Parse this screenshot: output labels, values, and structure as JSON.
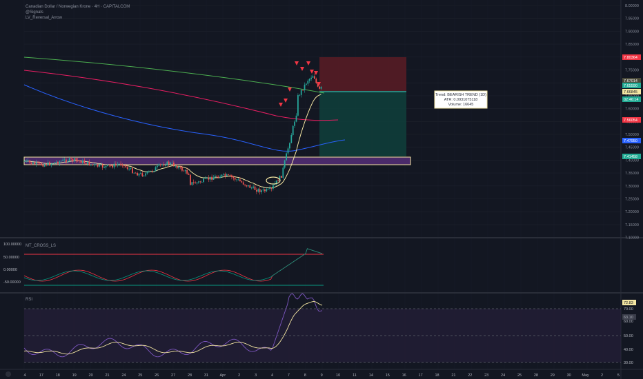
{
  "header": {
    "symbol_line": "Canadian Dollar / Norwegian Krone · 4H · CAPITALCOM",
    "line2": "@Signals",
    "line3": "LV_Reversal_Arrow"
  },
  "info_box": {
    "trend": "Trend: BEARISH TREND (1D)",
    "atr": "ATR: 0.0931075118",
    "volume": "Volume: 16645"
  },
  "price_axis": {
    "ticks": [
      "8.00000",
      "7.95000",
      "7.90000",
      "7.85000",
      "7.80000",
      "7.75000",
      "7.70000",
      "7.65000",
      "7.60000",
      "7.55000",
      "7.50000",
      "7.45000",
      "7.40000",
      "7.35000",
      "7.30000",
      "7.25000",
      "7.20000",
      "7.15000",
      "7.10000"
    ],
    "badges": [
      {
        "label": "7.80364",
        "color": "#f23645"
      },
      {
        "label": "7.67014",
        "color": "#4a4a3a"
      },
      {
        "label": "7.65590",
        "color": "#22ab94"
      },
      {
        "label": "7.66845",
        "color": "#f5e7a3"
      },
      {
        "label": "02:46:14",
        "color": "#22ab94"
      },
      {
        "label": "7.56054",
        "color": "#f23645"
      },
      {
        "label": "7.47950",
        "color": "#2962ff"
      },
      {
        "label": "7.41458",
        "color": "#22ab94"
      }
    ]
  },
  "osc_panel": {
    "title": "MT_CROSS_LS",
    "ticks": [
      "100.00000",
      "50.00000",
      "0.00000",
      "-50.00000"
    ]
  },
  "rsi_panel": {
    "title": "RSI",
    "ticks": [
      "72.83",
      "70.00",
      "63.10",
      "60.00",
      "50.00",
      "40.00",
      "30.00"
    ]
  },
  "time_axis": {
    "labels": [
      "4",
      "17",
      "18",
      "19",
      "20",
      "21",
      "24",
      "25",
      "26",
      "27",
      "28",
      "31",
      "Apr",
      "2",
      "3",
      "4",
      "7",
      "8",
      "9",
      "10",
      "11",
      "14",
      "15",
      "16",
      "17",
      "18",
      "21",
      "22",
      "23",
      "24",
      "25",
      "28",
      "29",
      "30",
      "May",
      "2",
      "5"
    ]
  },
  "colors": {
    "background": "#131722",
    "bull": "#26a69a",
    "bear": "#ef5350",
    "ma_green": "#4caf50",
    "ma_red": "#e91e63",
    "ma_blue": "#2962ff",
    "ma_yellow": "#f5e7a3",
    "zone_purple": "#7b3fa0",
    "zone_border": "#f5e7a3",
    "stop_zone": "#5b1c25",
    "target_zone": "#0f3d3a",
    "rsi_line": "#7e57c2",
    "osc_red": "#f23645",
    "osc_green": "#089981"
  },
  "icons": {
    "sell_arrow": "down-triangle-icon",
    "settings": "gear-icon"
  }
}
